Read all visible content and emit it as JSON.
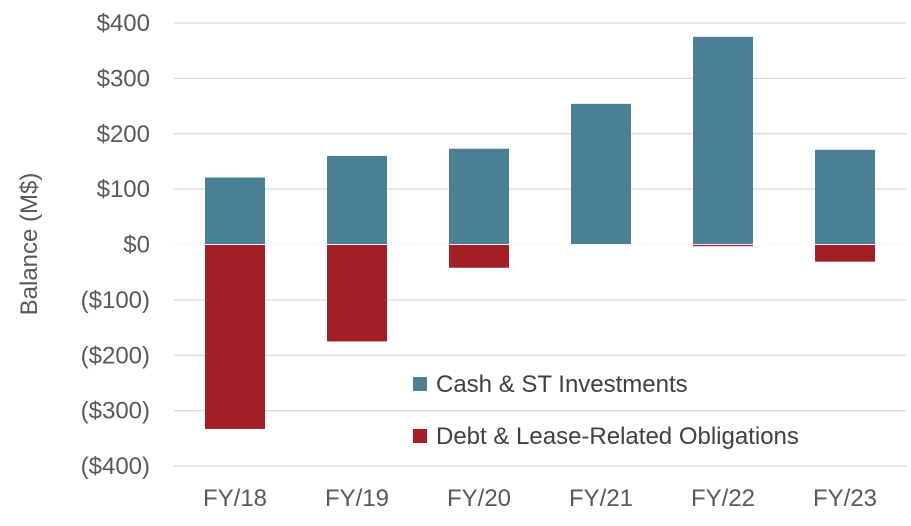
{
  "chart_data": {
    "type": "bar",
    "stacked": true,
    "categories": [
      "FY/18",
      "FY/19",
      "FY/20",
      "FY/21",
      "FY/22",
      "FY/23"
    ],
    "series": [
      {
        "name": "Cash & ST Investments",
        "color": "#4a7f96",
        "values": [
          121,
          160,
          173,
          254,
          375,
          171
        ]
      },
      {
        "name": "Debt & Lease-Related Obligations",
        "color": "#a21f26",
        "values": [
          -333,
          -175,
          -42,
          0,
          -3,
          -31
        ]
      }
    ],
    "ylabel": "Balance (M$)",
    "ylim": [
      -400,
      400
    ],
    "yticks": [
      400,
      300,
      200,
      100,
      0,
      -100,
      -200,
      -300,
      -400
    ],
    "ytick_labels": [
      "$400",
      "$300",
      "$200",
      "$100",
      "$0",
      "($100)",
      "($200)",
      "($300)",
      "($400)"
    ],
    "grid": true,
    "legend_position": "bottom-right inside plot"
  }
}
